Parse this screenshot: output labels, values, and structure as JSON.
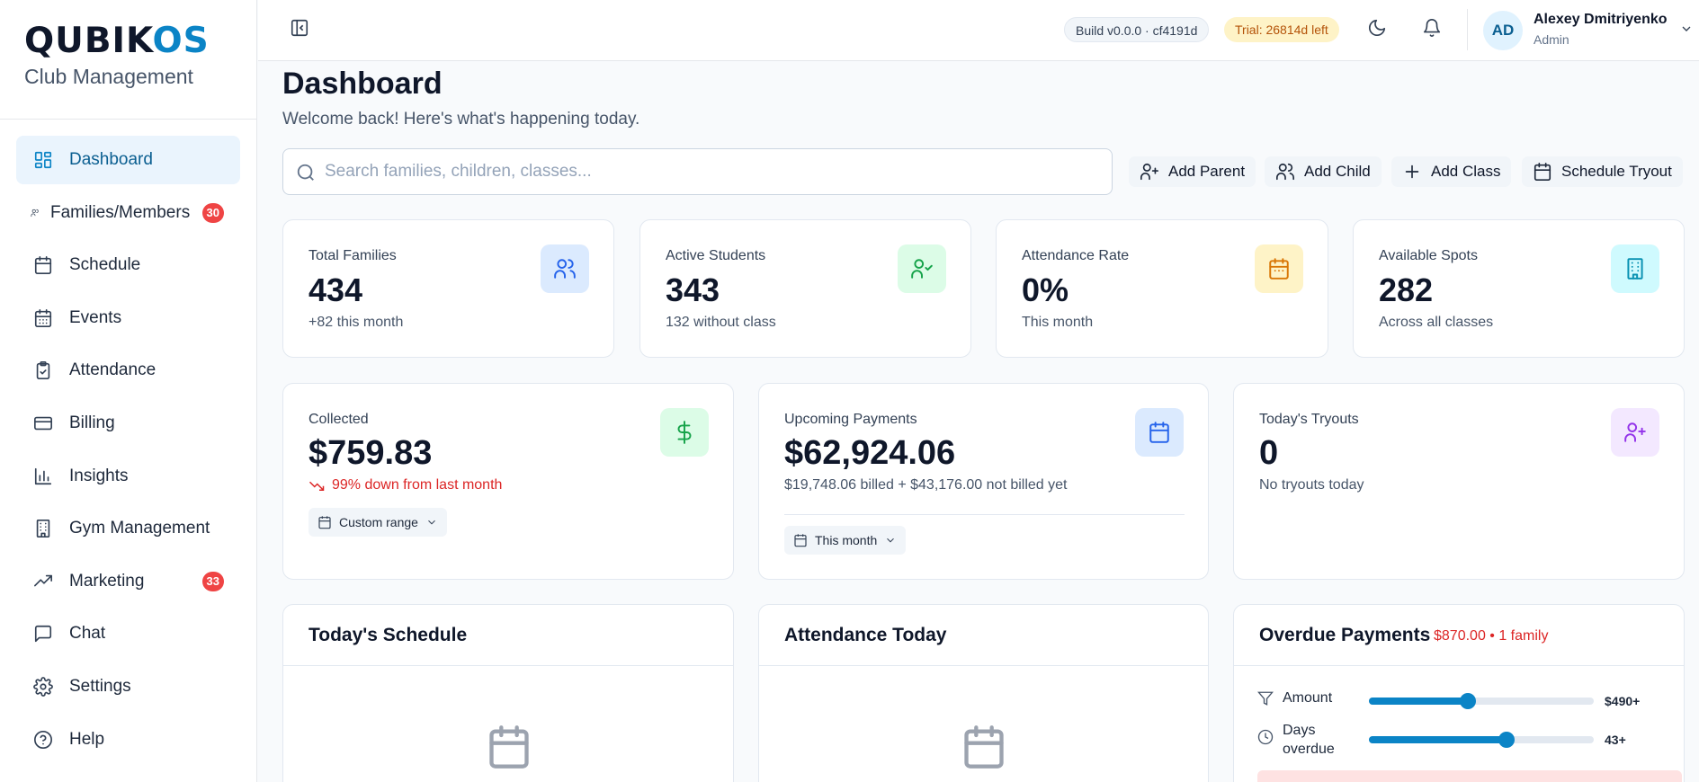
{
  "brand": {
    "logo_part1": "QUBIK",
    "logo_part2": "OS",
    "subtitle": "Club Management"
  },
  "sidebar": {
    "items": [
      {
        "label": "Dashboard",
        "icon": "dashboard-icon",
        "active": true
      },
      {
        "label": "Families/Members",
        "icon": "users-icon",
        "badge": "30"
      },
      {
        "label": "Schedule",
        "icon": "calendar-icon"
      },
      {
        "label": "Events",
        "icon": "calendar-days-icon"
      },
      {
        "label": "Attendance",
        "icon": "clipboard-check-icon"
      },
      {
        "label": "Billing",
        "icon": "credit-card-icon"
      },
      {
        "label": "Insights",
        "icon": "bar-chart-icon"
      },
      {
        "label": "Gym Management",
        "icon": "building-icon"
      },
      {
        "label": "Marketing",
        "icon": "trending-up-icon",
        "badge": "33"
      },
      {
        "label": "Chat",
        "icon": "message-square-icon"
      },
      {
        "label": "Settings",
        "icon": "gear-icon"
      },
      {
        "label": "Help",
        "icon": "help-circle-icon"
      }
    ]
  },
  "topbar": {
    "build": "Build v0.0.0 · cf4191d",
    "trial": "Trial: 26814d left",
    "user": {
      "initials": "AD",
      "name": "Alexey Dmitriyenko",
      "role": "Admin"
    }
  },
  "page": {
    "title": "Dashboard",
    "subtitle": "Welcome back! Here's what's happening today.",
    "search_placeholder": "Search families, children, classes..."
  },
  "quick_actions": [
    "Add Parent",
    "Add Child",
    "Add Class",
    "Schedule Tryout"
  ],
  "stats": [
    {
      "label": "Total Families",
      "value": "434",
      "sub": "+82 this month",
      "icon": "users-icon"
    },
    {
      "label": "Active Students",
      "value": "343",
      "sub": "132 without class",
      "icon": "user-check-icon"
    },
    {
      "label": "Attendance Rate",
      "value": "0%",
      "sub": "This month",
      "icon": "calendar-icon"
    },
    {
      "label": "Available Spots",
      "value": "282",
      "sub": "Across all classes",
      "icon": "building-icon"
    }
  ],
  "collected": {
    "label": "Collected",
    "value": "$759.83",
    "trend": "99% down from last month",
    "range_button": "Custom range",
    "icon": "dollar-icon"
  },
  "upcoming": {
    "label": "Upcoming Payments",
    "value": "$62,924.06",
    "sub": "$19,748.06 billed + $43,176.00 not billed yet",
    "range_button": "This month",
    "icon": "calendar-icon"
  },
  "tryouts": {
    "label": "Today's Tryouts",
    "value": "0",
    "sub": "No tryouts today",
    "icon": "user-plus-icon"
  },
  "panels": {
    "schedule": {
      "title": "Today's Schedule"
    },
    "attendance": {
      "title": "Attendance Today"
    },
    "overdue": {
      "title": "Overdue Payments",
      "summary": "$870.00 • 1 family",
      "filters": [
        {
          "label": "Amount",
          "value": "$490+",
          "level": 0.44
        },
        {
          "label": "Days overdue",
          "value": "43+",
          "level": 0.61
        }
      ]
    }
  },
  "colors": {
    "accent": "#0b84c6",
    "danger": "#dc2626",
    "badge": "#ef4444"
  }
}
